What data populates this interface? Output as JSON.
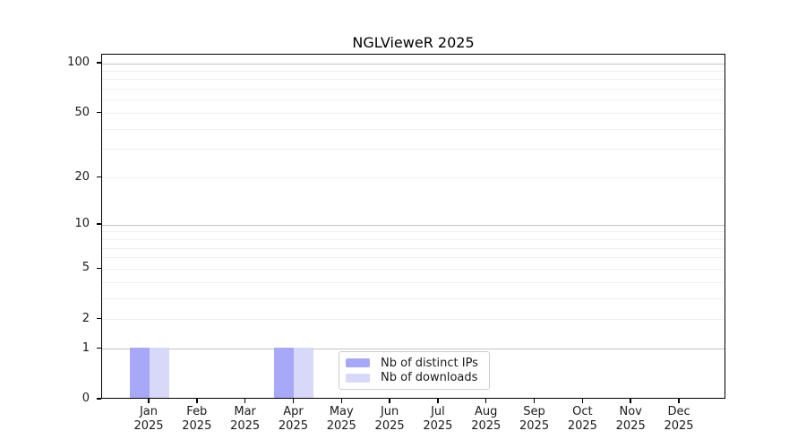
{
  "chart_data": {
    "type": "bar",
    "title": "NGLVieweR 2025",
    "xlabel": "",
    "ylabel": "",
    "categories": [
      "Jan",
      "Feb",
      "Mar",
      "Apr",
      "May",
      "Jun",
      "Jul",
      "Aug",
      "Sep",
      "Oct",
      "Nov",
      "Dec"
    ],
    "category_year": "2025",
    "series": [
      {
        "name": "Nb of distinct IPs",
        "color": "#a8a8f8",
        "values": [
          1,
          0,
          0,
          1,
          0,
          0,
          0,
          0,
          0,
          0,
          0,
          0
        ]
      },
      {
        "name": "Nb of downloads",
        "color": "#d8d8f8",
        "values": [
          1,
          0,
          0,
          1,
          0,
          0,
          0,
          0,
          0,
          0,
          0,
          0
        ]
      }
    ],
    "y_axis": {
      "scale": "log1p",
      "max": 100,
      "tick_values": [
        0,
        1,
        2,
        5,
        10,
        20,
        50,
        100
      ],
      "tick_labels": [
        "0",
        "1",
        "2",
        "5",
        "10",
        "20",
        "50",
        "100"
      ],
      "major_grid_values": [
        1,
        10,
        100
      ],
      "minor_grid_values": [
        3,
        4,
        6,
        7,
        8,
        9,
        30,
        40,
        60,
        70,
        80,
        90
      ]
    },
    "grid": true,
    "legend_position": "inside-bottom-center"
  },
  "colors": {
    "axis": "#000000",
    "grid_major": "#c3c3c3",
    "grid_minor": "#f0f0f0",
    "text": "#1a1a1a",
    "legend_border": "#cccccc",
    "background": "#ffffff"
  }
}
